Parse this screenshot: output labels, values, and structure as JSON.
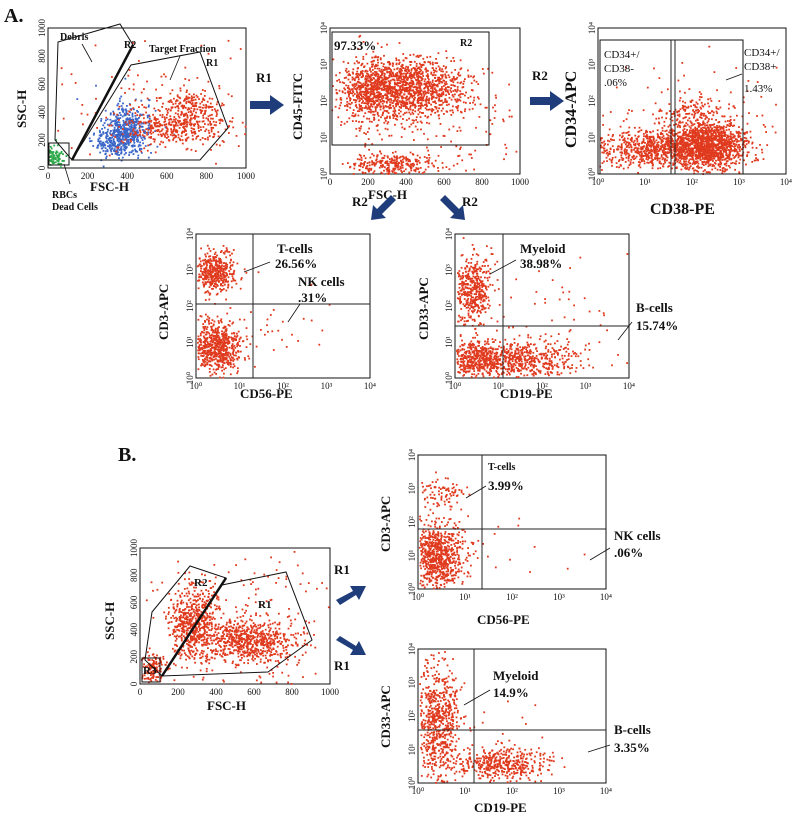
{
  "colors": {
    "events": "#e03a1e",
    "debris": "#3a66c8",
    "rbc": "#2ea84a",
    "arrow": "#1f3d7a"
  },
  "figure": {
    "panelA": {
      "letter": "A."
    },
    "panelB": {
      "letter": "B."
    }
  },
  "chart_data": [
    {
      "id": "A1",
      "type": "scatter",
      "panel": "A",
      "xlabel": "FSC-H",
      "ylabel": "SSC-H",
      "xscale": "linear",
      "yscale": "linear",
      "xlim": [
        0,
        1000
      ],
      "ylim": [
        0,
        1000
      ],
      "xticks": [
        "0",
        "200",
        "400",
        "600",
        "800",
        "1000"
      ],
      "yticks": [
        "0",
        "200",
        "400",
        "600",
        "800",
        "1000"
      ],
      "gates": [
        {
          "name": "R1",
          "label": "Target Fraction"
        },
        {
          "name": "R2",
          "label": "Debris"
        },
        {
          "name": "R3",
          "label": "RBCs Dead Cells"
        }
      ],
      "annotations": [
        "Debris",
        "R2",
        "Target Fraction",
        "R1",
        "RBCs",
        "Dead Cells"
      ]
    },
    {
      "id": "A2",
      "type": "scatter",
      "panel": "A",
      "xlabel": "FSC-H",
      "ylabel": "CD45-FITC",
      "xscale": "linear",
      "yscale": "log",
      "xlim": [
        0,
        1000
      ],
      "ylim": [
        1,
        10000
      ],
      "xticks": [
        "0",
        "200",
        "400",
        "600",
        "800",
        "1000"
      ],
      "yticks": [
        "10⁰",
        "10¹",
        "10²",
        "10³",
        "10⁴"
      ],
      "gates": [
        {
          "name": "R2",
          "percent": "97.33%"
        }
      ],
      "annotations": [
        "97.33%",
        "R2"
      ]
    },
    {
      "id": "A3",
      "type": "scatter",
      "panel": "A",
      "xlabel": "CD38-PE",
      "ylabel": "CD34-APC",
      "xscale": "log",
      "yscale": "log",
      "xlim": [
        1,
        10000
      ],
      "ylim": [
        1,
        10000
      ],
      "xticks": [
        "10⁰",
        "10¹",
        "10²",
        "10³",
        "10⁴"
      ],
      "yticks": [
        "10⁰",
        "10¹",
        "10²",
        "10³",
        "10⁴"
      ],
      "quadrants": [
        {
          "name": "CD34+/CD38-",
          "percent": ".06%"
        },
        {
          "name": "CD34+/CD38+",
          "percent": "1.43%"
        }
      ]
    },
    {
      "id": "A4",
      "type": "scatter",
      "panel": "A",
      "xlabel": "CD56-PE",
      "ylabel": "CD3-APC",
      "xscale": "log",
      "yscale": "log",
      "xlim": [
        1,
        10000
      ],
      "ylim": [
        1,
        10000
      ],
      "xticks": [
        "10⁰",
        "10¹",
        "10²",
        "10³",
        "10⁴"
      ],
      "yticks": [
        "10⁰",
        "10¹",
        "10²",
        "10³",
        "10⁴"
      ],
      "quadrants": [
        {
          "name": "T-cells",
          "percent": "26.56%"
        },
        {
          "name": "NK cells",
          "percent": ".31%"
        }
      ]
    },
    {
      "id": "A5",
      "type": "scatter",
      "panel": "A",
      "xlabel": "CD19-PE",
      "ylabel": "CD33-APC",
      "xscale": "log",
      "yscale": "log",
      "xlim": [
        1,
        10000
      ],
      "ylim": [
        1,
        10000
      ],
      "xticks": [
        "10⁰",
        "10¹",
        "10²",
        "10³",
        "10⁴"
      ],
      "yticks": [
        "10⁰",
        "10¹",
        "10²",
        "10³",
        "10⁴"
      ],
      "quadrants": [
        {
          "name": "Myeloid",
          "percent": "38.98%"
        },
        {
          "name": "B-cells",
          "percent": "15.74%"
        }
      ]
    },
    {
      "id": "B1",
      "type": "scatter",
      "panel": "B",
      "xlabel": "FSC-H",
      "ylabel": "SSC-H",
      "xscale": "linear",
      "yscale": "linear",
      "xlim": [
        0,
        1000
      ],
      "ylim": [
        0,
        1000
      ],
      "xticks": [
        "0",
        "200",
        "400",
        "600",
        "800",
        "1000"
      ],
      "yticks": [
        "0",
        "200",
        "400",
        "600",
        "800",
        "1000"
      ],
      "gates": [
        {
          "name": "R1"
        },
        {
          "name": "R2"
        },
        {
          "name": "R3"
        }
      ]
    },
    {
      "id": "B2",
      "type": "scatter",
      "panel": "B",
      "xlabel": "CD56-PE",
      "ylabel": "CD3-APC",
      "xscale": "log",
      "yscale": "log",
      "xlim": [
        1,
        10000
      ],
      "ylim": [
        1,
        10000
      ],
      "xticks": [
        "10⁰",
        "10¹",
        "10²",
        "10³",
        "10⁴"
      ],
      "yticks": [
        "10⁰",
        "10¹",
        "10²",
        "10³",
        "10⁴"
      ],
      "quadrants": [
        {
          "name": "T-cells",
          "percent": "3.99%"
        },
        {
          "name": "NK cells",
          "percent": ".06%"
        }
      ]
    },
    {
      "id": "B3",
      "type": "scatter",
      "panel": "B",
      "xlabel": "CD19-PE",
      "ylabel": "CD33-APC",
      "xscale": "log",
      "yscale": "log",
      "xlim": [
        1,
        10000
      ],
      "ylim": [
        1,
        10000
      ],
      "xticks": [
        "10⁰",
        "10¹",
        "10²",
        "10³",
        "10⁴"
      ],
      "yticks": [
        "10⁰",
        "10¹",
        "10²",
        "10³",
        "10⁴"
      ],
      "quadrants": [
        {
          "name": "Myeloid",
          "percent": "14.9%"
        },
        {
          "name": "B-cells",
          "percent": "3.35%"
        }
      ]
    }
  ],
  "flow": {
    "r1": "R1",
    "r2": "R2"
  }
}
